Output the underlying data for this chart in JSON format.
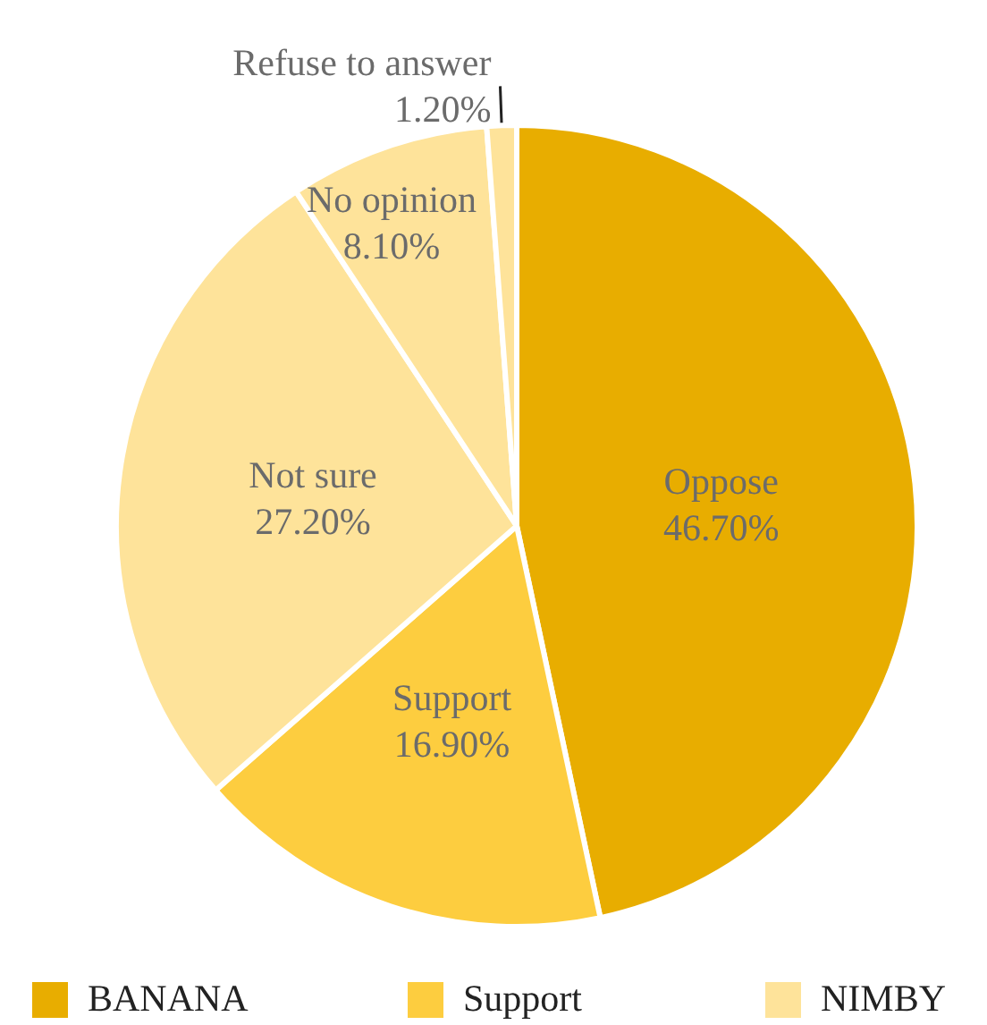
{
  "chart_data": {
    "type": "pie",
    "categories": [
      "Oppose",
      "Support",
      "Not sure",
      "No opinion",
      "Refuse to answer"
    ],
    "values": [
      46.7,
      16.9,
      27.2,
      8.1,
      1.2
    ],
    "colors": [
      "#e8ad00",
      "#fdcd3f",
      "#fee39a",
      "#fee39a",
      "#fee39a"
    ],
    "value_labels": [
      "46.70%",
      "16.90%",
      "27.20%",
      "8.10%",
      "1.20%"
    ],
    "annotations": [
      "BANANA",
      "Support",
      "NIMBY"
    ]
  }
}
